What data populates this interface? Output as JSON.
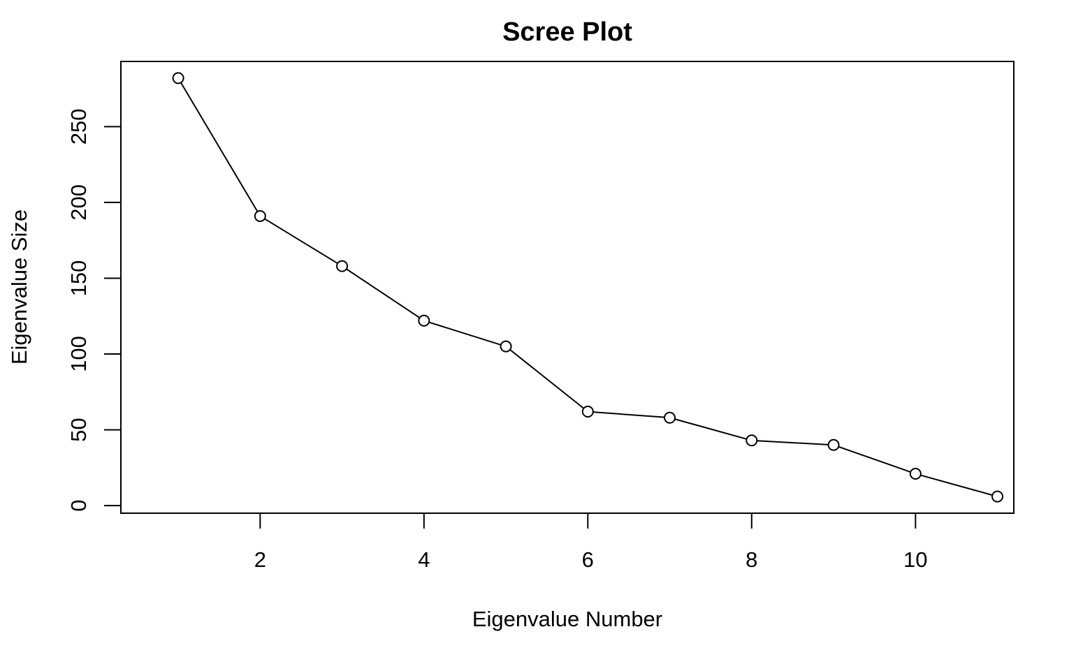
{
  "chart_data": {
    "type": "line",
    "title": "Scree Plot",
    "xlabel": "Eigenvalue Number",
    "ylabel": "Eigenvalue Size",
    "x": [
      1,
      2,
      3,
      4,
      5,
      6,
      7,
      8,
      9,
      10,
      11
    ],
    "values": [
      282,
      191,
      158,
      122,
      105,
      62,
      58,
      43,
      40,
      21,
      6
    ],
    "xlim": [
      0.3,
      11.2
    ],
    "ylim": [
      -5,
      293
    ],
    "xticks": [
      2,
      4,
      6,
      8,
      10
    ],
    "yticks": [
      0,
      50,
      100,
      150,
      200,
      250
    ],
    "marker": "open-circle",
    "line_color": "#000000",
    "grid": false,
    "legend": "none"
  }
}
